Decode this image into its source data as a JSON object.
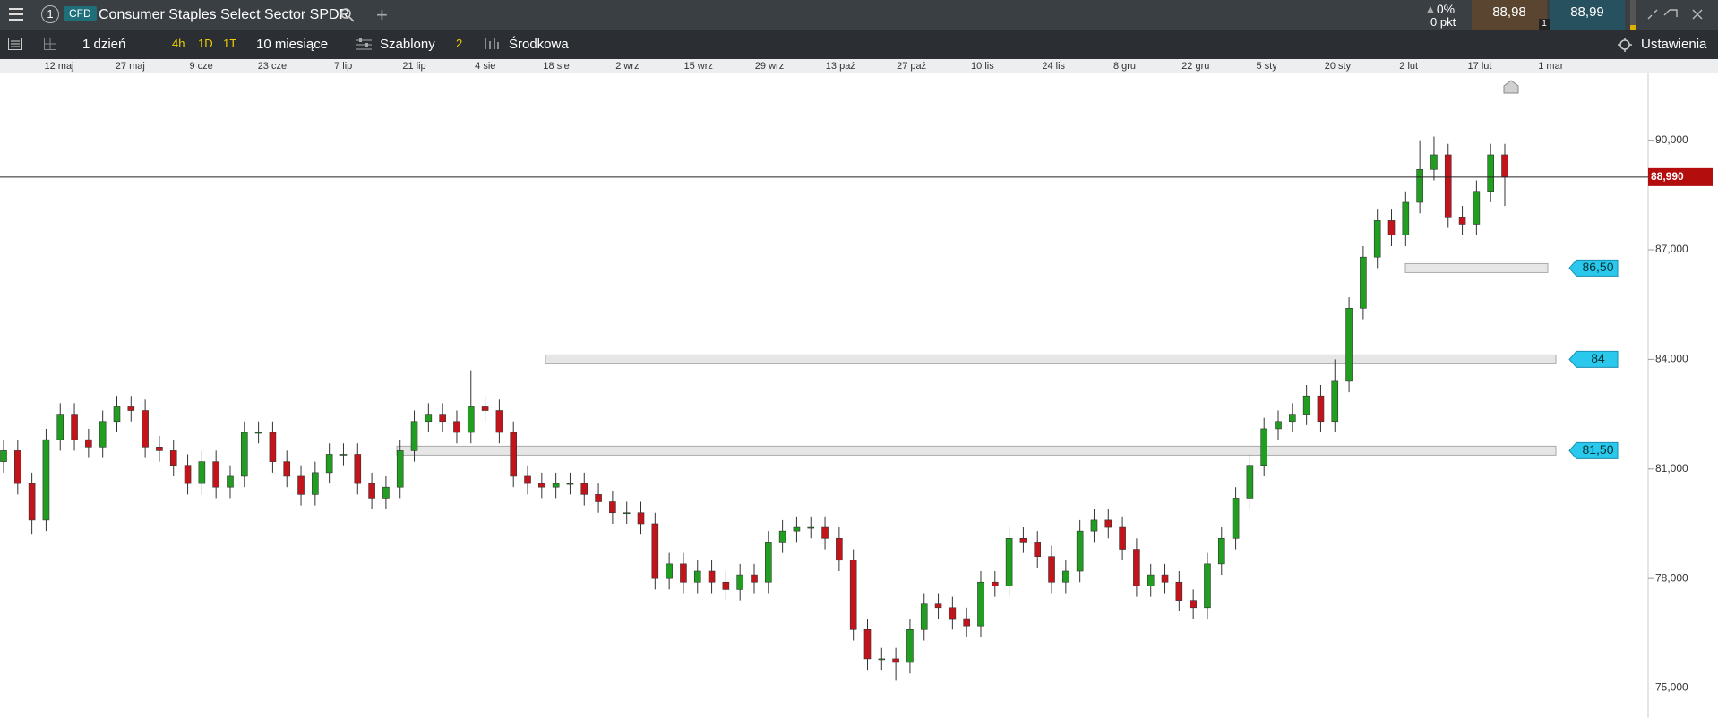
{
  "top_bar": {
    "tab_number": "1",
    "badge": "CFD",
    "instrument": "Consumer Staples Select Sector SPDR",
    "add_tab": "+",
    "change_percent": "0%",
    "change_points": "0 pkt",
    "sell_price": "88,98",
    "buy_price": "88,99",
    "quantity": "1"
  },
  "toolbar": {
    "interval": "1 dzień",
    "quick_intervals": [
      "4h",
      "1D",
      "1T"
    ],
    "range": "10 miesiące",
    "templates": "Szablony",
    "templates_count": "2",
    "indicator": "Środkowa",
    "settings": "Ustawienia"
  },
  "chart_data": {
    "type": "candlestick",
    "x_labels": [
      "12 maj",
      "27 maj",
      "9 cze",
      "23 cze",
      "7 lip",
      "21 lip",
      "4 sie",
      "18 sie",
      "2 wrz",
      "15 wrz",
      "29 wrz",
      "13 paź",
      "27 paź",
      "10 lis",
      "24 lis",
      "8 gru",
      "22 gru",
      "5 sty",
      "20 sty",
      "2 lut",
      "17 lut",
      "1 mar"
    ],
    "open": [
      81.2,
      81.5,
      80.6,
      79.6,
      81.8,
      82.5,
      81.8,
      81.6,
      82.3,
      82.7,
      82.6,
      81.6,
      81.5,
      81.1,
      80.6,
      81.2,
      80.5,
      80.8,
      82.0,
      82.0,
      81.2,
      80.8,
      80.3,
      80.9,
      81.4,
      81.4,
      80.6,
      80.2,
      80.5,
      81.5,
      82.3,
      82.5,
      82.3,
      82.0,
      82.7,
      82.6,
      82.0,
      80.8,
      80.6,
      80.5,
      80.6,
      80.6,
      80.3,
      80.1,
      79.8,
      79.8,
      79.5,
      78.0,
      78.4,
      77.9,
      78.2,
      77.9,
      77.7,
      78.1,
      77.9,
      79.0,
      79.3,
      79.4,
      79.4,
      79.1,
      78.5,
      76.6,
      75.8,
      75.8,
      75.7,
      76.6,
      77.3,
      77.2,
      76.9,
      76.7,
      77.9,
      77.8,
      79.1,
      79.0,
      78.6,
      77.9,
      78.2,
      79.3,
      79.6,
      79.4,
      78.8,
      77.8,
      78.1,
      77.9,
      77.4,
      77.2,
      78.4,
      79.1,
      80.2,
      81.1,
      82.1,
      82.3,
      82.5,
      83.0,
      82.3,
      83.4,
      85.4,
      86.8,
      87.8,
      87.4,
      88.3,
      89.2,
      89.6,
      87.9,
      87.7,
      88.6,
      89.6
    ],
    "high": [
      81.8,
      81.8,
      80.9,
      82.1,
      82.8,
      82.8,
      82.1,
      82.6,
      83.0,
      83.0,
      82.9,
      81.9,
      81.8,
      81.4,
      81.5,
      81.5,
      81.1,
      82.3,
      82.3,
      82.3,
      81.5,
      81.1,
      81.2,
      81.7,
      81.7,
      81.7,
      80.9,
      80.8,
      81.8,
      82.6,
      82.8,
      82.8,
      82.6,
      83.7,
      83.0,
      82.9,
      82.3,
      81.1,
      80.9,
      80.9,
      80.9,
      80.9,
      80.6,
      80.4,
      80.1,
      80.1,
      79.8,
      78.7,
      78.7,
      78.5,
      78.5,
      78.2,
      78.4,
      78.4,
      79.3,
      79.6,
      79.7,
      79.7,
      79.7,
      79.4,
      78.8,
      76.9,
      76.1,
      76.1,
      76.9,
      77.6,
      77.6,
      77.5,
      77.2,
      78.2,
      78.2,
      79.4,
      79.4,
      79.3,
      78.9,
      78.5,
      79.6,
      79.9,
      79.9,
      79.7,
      79.1,
      78.4,
      78.4,
      78.2,
      77.7,
      78.7,
      79.4,
      80.5,
      81.4,
      82.4,
      82.6,
      82.8,
      83.3,
      83.3,
      84.0,
      85.7,
      87.1,
      88.1,
      88.1,
      88.6,
      90.0,
      90.1,
      89.9,
      88.2,
      88.9,
      89.9,
      89.9
    ],
    "low": [
      80.9,
      80.3,
      79.2,
      79.3,
      81.5,
      81.5,
      81.3,
      81.3,
      82.0,
      82.3,
      81.3,
      81.2,
      80.8,
      80.3,
      80.3,
      80.2,
      80.2,
      80.5,
      81.7,
      80.9,
      80.5,
      80.0,
      80.0,
      80.6,
      81.1,
      80.3,
      79.9,
      79.9,
      80.2,
      81.2,
      82.0,
      82.0,
      81.7,
      81.7,
      82.3,
      81.7,
      80.5,
      80.3,
      80.2,
      80.2,
      80.3,
      80.0,
      79.8,
      79.5,
      79.5,
      79.2,
      77.7,
      77.7,
      77.6,
      77.6,
      77.6,
      77.4,
      77.4,
      77.6,
      77.6,
      78.7,
      79.0,
      79.1,
      78.8,
      78.2,
      76.3,
      75.5,
      75.5,
      75.2,
      75.4,
      76.3,
      76.9,
      76.6,
      76.4,
      76.4,
      77.5,
      77.5,
      78.7,
      78.3,
      77.6,
      77.6,
      77.9,
      79.0,
      79.1,
      78.5,
      77.5,
      77.5,
      77.6,
      77.1,
      76.9,
      76.9,
      78.1,
      78.8,
      79.9,
      80.8,
      81.8,
      82.0,
      82.2,
      82.0,
      82.0,
      83.1,
      85.1,
      86.5,
      87.1,
      87.1,
      88.0,
      88.9,
      87.6,
      87.4,
      87.4,
      88.3,
      88.2
    ],
    "close": [
      81.5,
      80.6,
      79.6,
      81.8,
      82.5,
      81.8,
      81.6,
      82.3,
      82.7,
      82.6,
      81.6,
      81.5,
      81.1,
      80.6,
      81.2,
      80.5,
      80.8,
      82.0,
      82.0,
      81.2,
      80.8,
      80.3,
      80.9,
      81.4,
      81.4,
      80.6,
      80.2,
      80.5,
      81.5,
      82.3,
      82.5,
      82.3,
      82.0,
      82.7,
      82.6,
      82.0,
      80.8,
      80.6,
      80.5,
      80.6,
      80.6,
      80.3,
      80.1,
      79.8,
      79.8,
      79.5,
      78.0,
      78.4,
      77.9,
      78.2,
      77.9,
      77.7,
      78.1,
      77.9,
      79.0,
      79.3,
      79.4,
      79.4,
      79.1,
      78.5,
      76.6,
      75.8,
      75.8,
      75.7,
      76.6,
      77.3,
      77.2,
      76.9,
      76.7,
      77.9,
      77.8,
      79.1,
      79.0,
      78.6,
      77.9,
      78.2,
      79.3,
      79.6,
      79.4,
      78.8,
      77.8,
      78.1,
      77.9,
      77.4,
      77.2,
      78.4,
      79.1,
      80.2,
      81.1,
      82.1,
      82.3,
      82.5,
      83.0,
      82.3,
      83.4,
      85.4,
      86.8,
      87.8,
      87.4,
      88.3,
      89.2,
      89.6,
      87.9,
      87.7,
      88.6,
      89.6,
      88.99
    ],
    "up_color": "#1f9e1f",
    "down_color": "#c3141c",
    "ylim": [
      74.18,
      91.83
    ],
    "yticks": [
      {
        "value": 75,
        "label": "75,000"
      },
      {
        "value": 78,
        "label": "78,000"
      },
      {
        "value": 81,
        "label": "81,000"
      },
      {
        "value": 84,
        "label": "84,000"
      },
      {
        "value": 87,
        "label": "87,000"
      },
      {
        "value": 90,
        "label": "90,000"
      }
    ],
    "current_price": {
      "value": 88.99,
      "label": "88,990"
    },
    "levels": [
      {
        "value": 86.5,
        "label": "86,50"
      },
      84,
      {
        "value": 81.5,
        "label": "81,50"
      }
    ]
  }
}
